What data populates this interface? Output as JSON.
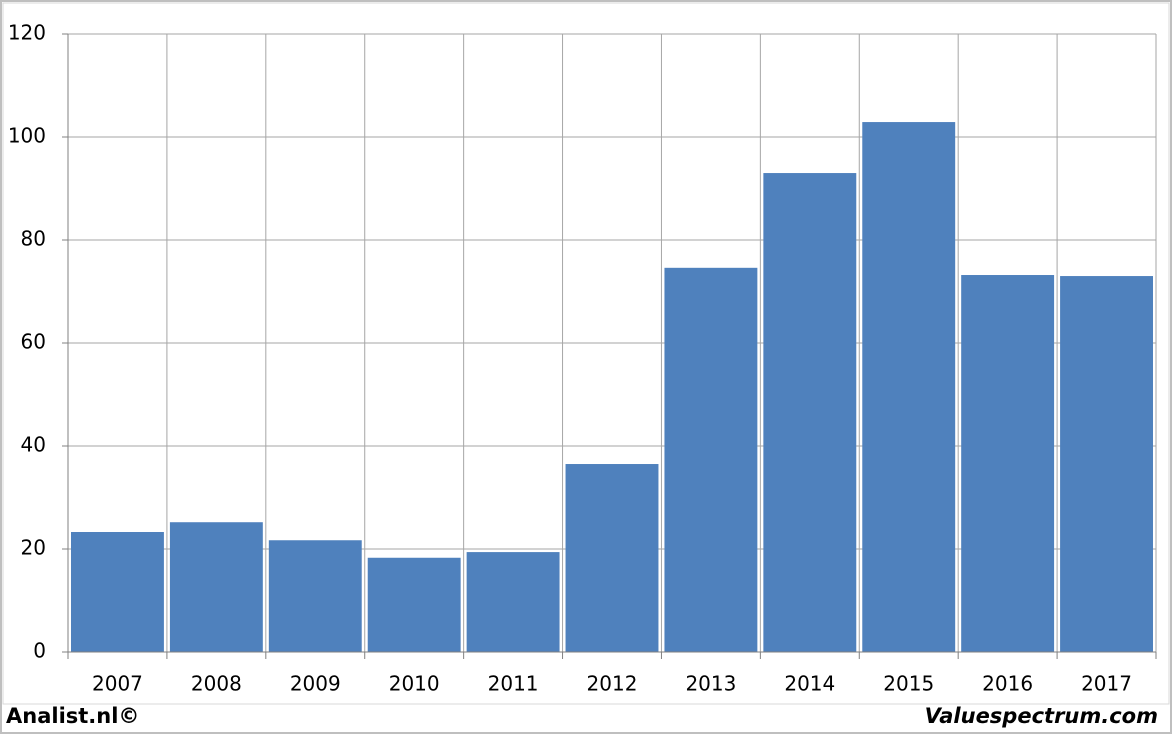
{
  "chart_data": {
    "type": "bar",
    "categories": [
      "2007",
      "2008",
      "2009",
      "2010",
      "2011",
      "2012",
      "2013",
      "2014",
      "2015",
      "2016",
      "2017"
    ],
    "values": [
      23.3,
      25.2,
      21.7,
      18.3,
      19.4,
      36.5,
      74.6,
      93.0,
      102.9,
      73.2,
      73.0
    ],
    "color": "#4f81bd",
    "ylim": [
      0,
      120
    ],
    "yticks": [
      0,
      20,
      40,
      60,
      80,
      100,
      120
    ],
    "grid": true,
    "annotations": [
      "Analist.nl©",
      "Valuespectrum.com"
    ]
  }
}
